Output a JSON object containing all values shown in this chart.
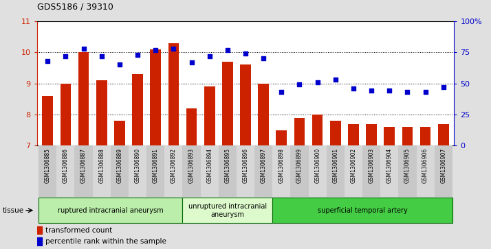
{
  "title": "GDS5186 / 39310",
  "samples": [
    "GSM1306885",
    "GSM1306886",
    "GSM1306887",
    "GSM1306888",
    "GSM1306889",
    "GSM1306890",
    "GSM1306891",
    "GSM1306892",
    "GSM1306893",
    "GSM1306894",
    "GSM1306895",
    "GSM1306896",
    "GSM1306897",
    "GSM1306898",
    "GSM1306899",
    "GSM1306900",
    "GSM1306901",
    "GSM1306902",
    "GSM1306903",
    "GSM1306904",
    "GSM1306905",
    "GSM1306906",
    "GSM1306907"
  ],
  "bar_values": [
    8.6,
    9.0,
    10.0,
    9.1,
    7.8,
    9.3,
    10.1,
    10.3,
    8.2,
    8.9,
    9.7,
    9.6,
    9.0,
    7.5,
    7.9,
    8.0,
    7.8,
    7.7,
    7.7,
    7.6,
    7.6,
    7.6,
    7.7
  ],
  "dot_values": [
    68,
    72,
    78,
    72,
    65,
    73,
    77,
    78,
    67,
    72,
    77,
    74,
    70,
    43,
    49,
    51,
    53,
    46,
    44,
    44,
    43,
    43,
    47
  ],
  "ylim_left": [
    7,
    11
  ],
  "ylim_right": [
    0,
    100
  ],
  "yticks_left": [
    7,
    8,
    9,
    10,
    11
  ],
  "yticks_right": [
    0,
    25,
    50,
    75,
    100
  ],
  "bar_color": "#cc2200",
  "dot_color": "#0000cc",
  "groups": [
    {
      "label": "ruptured intracranial aneurysm",
      "start": 0,
      "end": 7,
      "color": "#bbeeaa"
    },
    {
      "label": "unruptured intracranial\naneurysm",
      "start": 8,
      "end": 12,
      "color": "#ddfacc"
    },
    {
      "label": "superficial temporal artery",
      "start": 13,
      "end": 22,
      "color": "#44cc44"
    }
  ],
  "tissue_label": "tissue",
  "legend_bar_label": "transformed count",
  "legend_dot_label": "percentile rank within the sample",
  "background_color": "#e0e0e0",
  "plot_bg_color": "#ffffff",
  "right_axis_color": "#0000cc",
  "left_axis_color": "#cc2200",
  "xtick_bg_color": "#d0d0d0"
}
